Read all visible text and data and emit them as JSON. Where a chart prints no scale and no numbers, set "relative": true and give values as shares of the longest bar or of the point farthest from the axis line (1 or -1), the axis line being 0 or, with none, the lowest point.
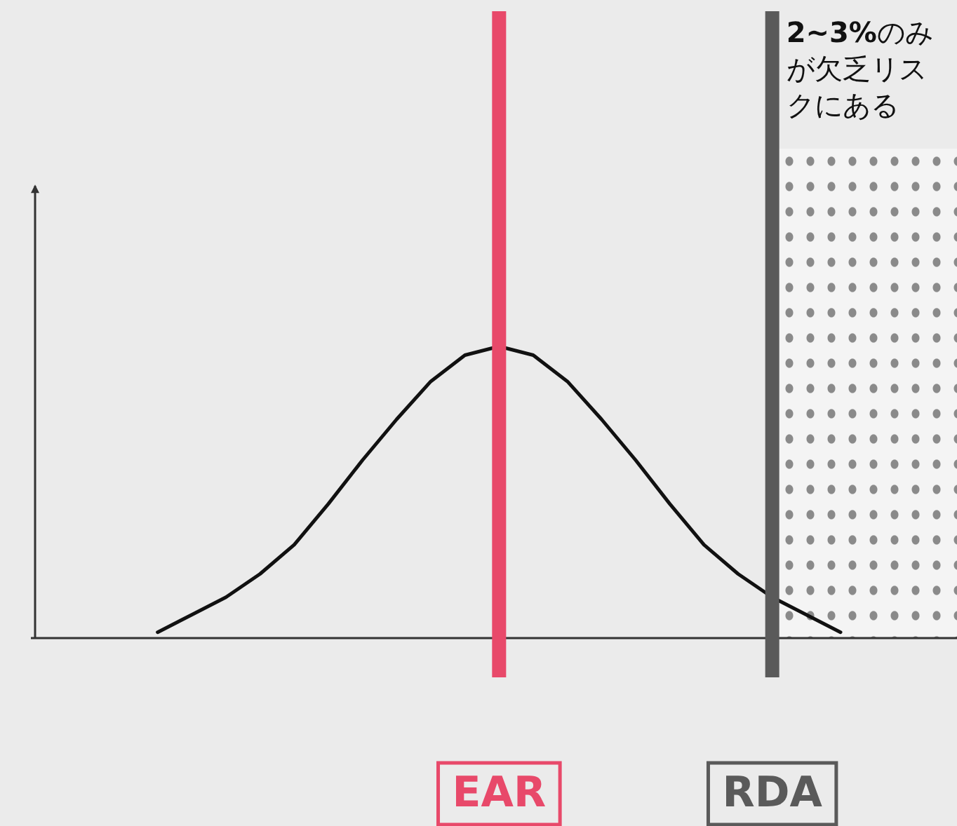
{
  "chart_data": {
    "type": "line",
    "relative": true,
    "categories": [
      null,
      null,
      null,
      null,
      null,
      null,
      null,
      null,
      null,
      null,
      null,
      null,
      null,
      null,
      "EAR",
      null,
      null,
      null,
      null,
      null,
      null,
      null,
      "RDA",
      null,
      null,
      null,
      null,
      null
    ],
    "series": [
      {
        "color": "#111111",
        "values": [
          null,
          null,
          null,
          null,
          0.02,
          0.08,
          0.14,
          0.22,
          0.32,
          0.46,
          0.61,
          0.75,
          0.88,
          0.97,
          1,
          0.97,
          0.88,
          0.75,
          0.61,
          0.46,
          0.32,
          0.22,
          0.14,
          0.08,
          0.02,
          null,
          null,
          null
        ]
      }
    ],
    "tick_labels": "x",
    "marker": "none",
    "line_style": "solid",
    "ref_lines": [
      {
        "axis": "x",
        "value": "EAR",
        "color": "#e8496a"
      },
      {
        "axis": "x",
        "value": "RDA",
        "color": "#5a5a5a"
      }
    ],
    "annotations": [
      {
        "text": "2~3%のみが欠乏リスクにある",
        "x": "RDA"
      }
    ]
  }
}
